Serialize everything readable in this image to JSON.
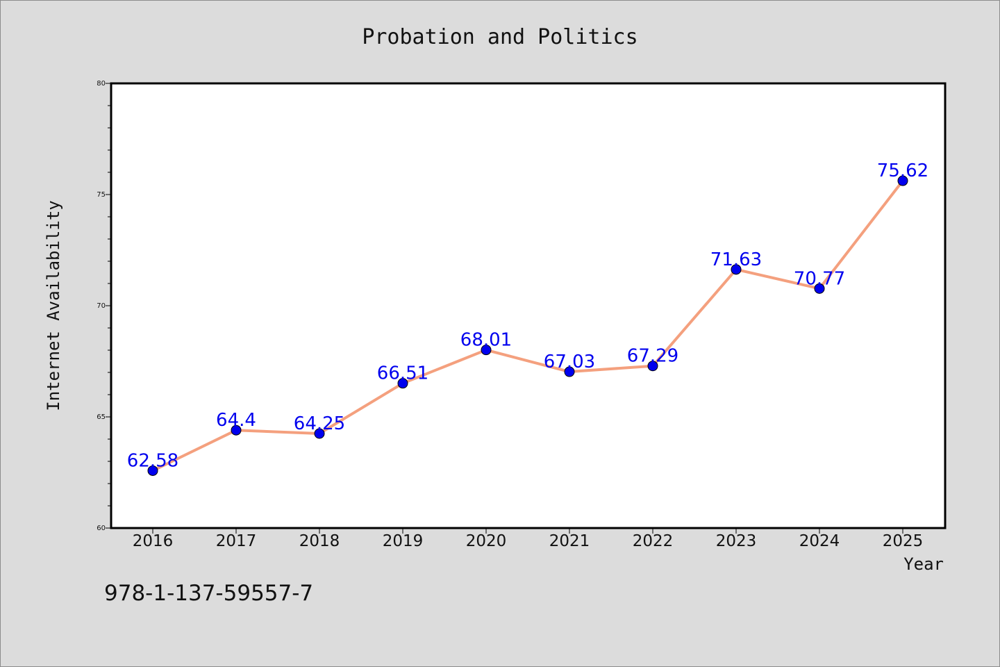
{
  "chart_data": {
    "type": "line",
    "title": "Probation and Politics",
    "xlabel": "Year",
    "ylabel": "Internet Availability",
    "categories": [
      "2016",
      "2017",
      "2018",
      "2019",
      "2020",
      "2021",
      "2022",
      "2023",
      "2024",
      "2025"
    ],
    "series": [
      {
        "values": [
          62.58,
          64.4,
          64.25,
          66.51,
          68.01,
          67.03,
          67.29,
          71.63,
          70.77,
          75.62
        ],
        "labels": [
          "62.58",
          "64.4",
          "64.25",
          "66.51",
          "68.01",
          "67.03",
          "67.29",
          "71.63",
          "70.77",
          "75.62"
        ]
      }
    ],
    "ylim": [
      60,
      80
    ],
    "yticks": [
      "60",
      "65",
      "70",
      "75",
      "80"
    ],
    "grid": false,
    "legend": "none",
    "colors": {
      "line": "#f4a07e",
      "marker": "#0000ee",
      "label": "#0000ee",
      "background": "#dcdcdc",
      "plot_background": "#ffffff"
    }
  },
  "footer": {
    "isbn": "978-1-137-59557-7"
  }
}
